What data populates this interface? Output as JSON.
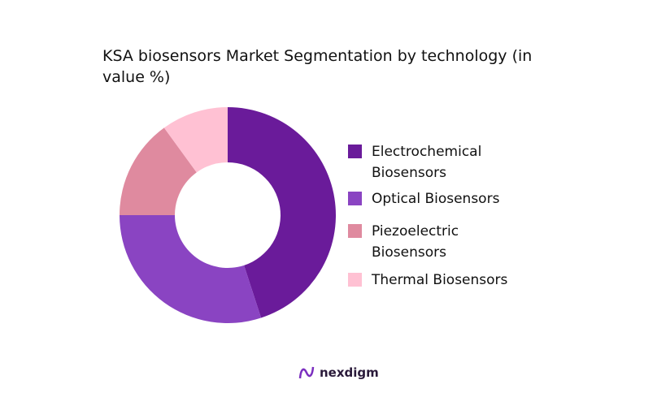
{
  "chart_data": {
    "type": "pie",
    "donut": true,
    "title": " KSA biosensors Market Segmentation by technology (in value %)",
    "categories": [
      "Electrochemical Biosensors",
      "Optical Biosensors",
      "Piezoelectric Biosensors",
      "Thermal Biosensors"
    ],
    "values": [
      45,
      30,
      15,
      10
    ],
    "colors": [
      "#6a1b9a",
      "#8a44c2",
      "#df8a9f",
      "#ffc1d3"
    ],
    "legend": "right"
  },
  "logo": "nexdigm"
}
